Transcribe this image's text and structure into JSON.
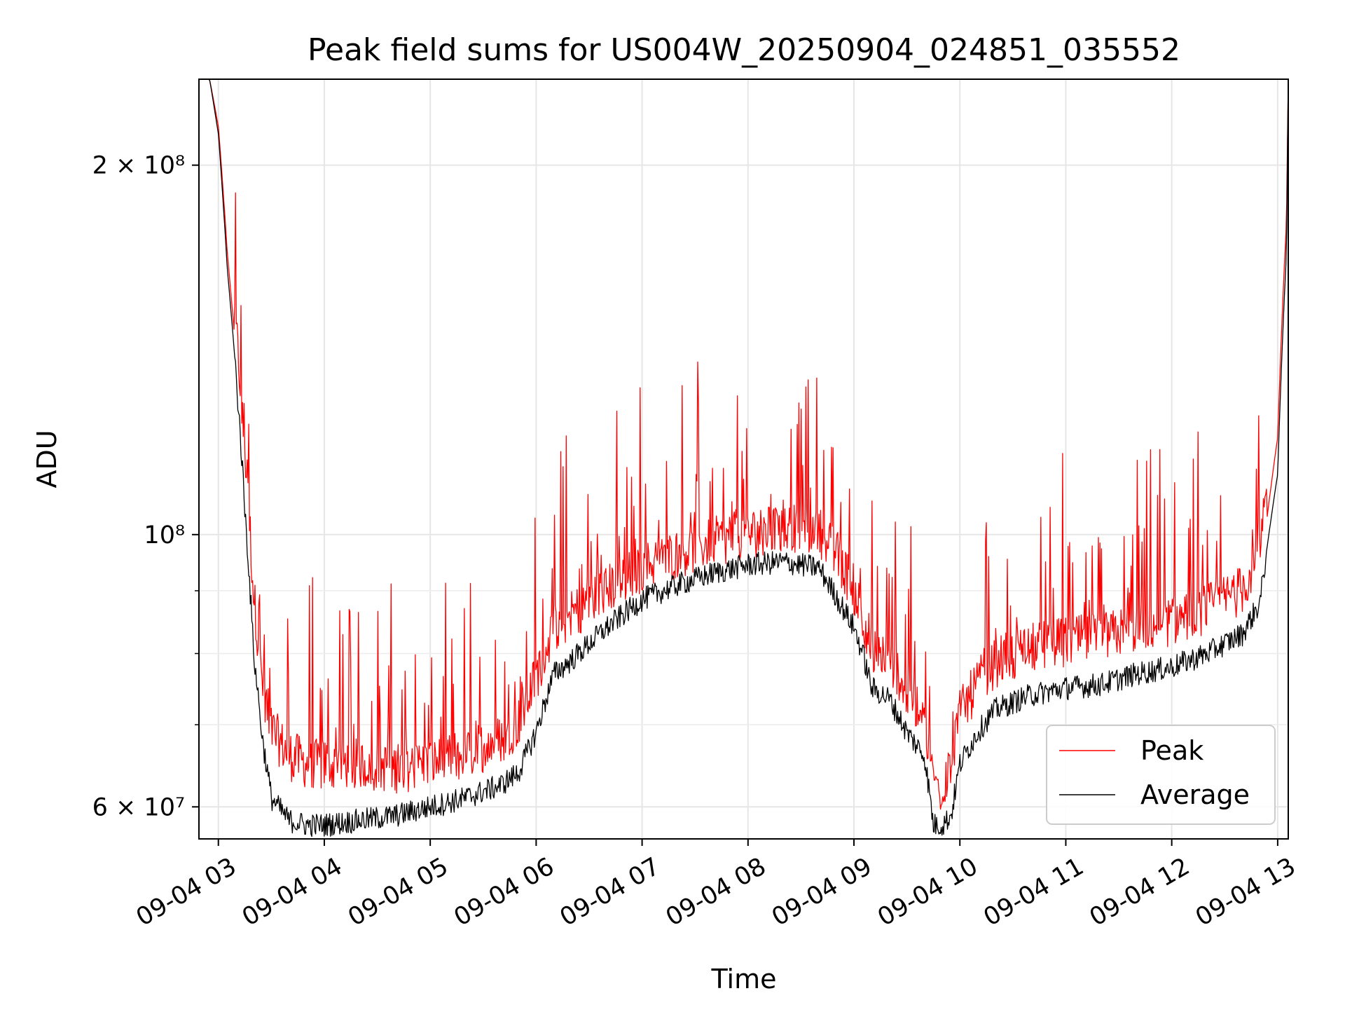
{
  "chart_data": {
    "type": "line",
    "title": "Peak field sums for US004W_20250904_024851_035552",
    "xlabel": "Time",
    "ylabel": "ADU",
    "x_scale": "time",
    "y_scale": "log",
    "xlim": [
      "09-04 02:49",
      "09-04 13:06"
    ],
    "ylim": [
      56500000,
      235000000
    ],
    "x_ticks": [
      "09-04 03",
      "09-04 04",
      "09-04 05",
      "09-04 06",
      "09-04 07",
      "09-04 08",
      "09-04 09",
      "09-04 10",
      "09-04 11",
      "09-04 12",
      "09-04 13"
    ],
    "y_major_ticks": [
      {
        "value": 60000000,
        "label": "6 × 10⁷"
      },
      {
        "value": 100000000,
        "label": "10⁸"
      },
      {
        "value": 200000000,
        "label": "2 × 10⁸"
      }
    ],
    "y_minor_ticks": [
      70000000,
      80000000,
      90000000
    ],
    "grid": true,
    "legend_position": "lower right",
    "series": [
      {
        "name": "Peak",
        "color": "#ff0000",
        "x": [
          "02:49",
          "02:55",
          "03:00",
          "03:05",
          "03:10",
          "03:15",
          "03:20",
          "03:25",
          "03:30",
          "03:40",
          "03:50",
          "04:00",
          "04:20",
          "04:40",
          "05:00",
          "05:20",
          "05:40",
          "05:50",
          "06:00",
          "06:10",
          "06:20",
          "06:40",
          "07:00",
          "07:20",
          "07:40",
          "08:00",
          "08:20",
          "08:40",
          "08:50",
          "09:00",
          "09:05",
          "09:10",
          "09:20",
          "09:30",
          "09:40",
          "09:45",
          "09:50",
          "09:55",
          "10:00",
          "10:10",
          "10:20",
          "10:40",
          "11:00",
          "11:20",
          "11:40",
          "12:00",
          "12:20",
          "12:40",
          "12:50",
          "13:00",
          "13:05",
          "13:06"
        ],
        "y": [
          235000000,
          235000000,
          215000000,
          170000000,
          140000000,
          112000000,
          85000000,
          72000000,
          66000000,
          63000000,
          62000000,
          62000000,
          62000000,
          61500000,
          62000000,
          63000000,
          65000000,
          67000000,
          73000000,
          80000000,
          82000000,
          86000000,
          89500000,
          92000000,
          94000000,
          95500000,
          96500000,
          96000000,
          92000000,
          86000000,
          82000000,
          77000000,
          76000000,
          71000000,
          68000000,
          60000000,
          59000000,
          62000000,
          68000000,
          72000000,
          75000000,
          77000000,
          78000000,
          78500000,
          80000000,
          81000000,
          83000000,
          86000000,
          92000000,
          120000000,
          180000000,
          235000000
        ]
      },
      {
        "name": "Average",
        "color": "#000000",
        "x": [
          "02:49",
          "02:55",
          "03:00",
          "03:05",
          "03:10",
          "03:15",
          "03:20",
          "03:25",
          "03:30",
          "03:40",
          "03:50",
          "04:00",
          "04:20",
          "04:40",
          "05:00",
          "05:20",
          "05:40",
          "05:50",
          "06:00",
          "06:10",
          "06:20",
          "06:40",
          "07:00",
          "07:20",
          "07:40",
          "08:00",
          "08:20",
          "08:40",
          "08:50",
          "09:00",
          "09:05",
          "09:10",
          "09:20",
          "09:30",
          "09:40",
          "09:45",
          "09:50",
          "09:55",
          "10:00",
          "10:10",
          "10:20",
          "10:40",
          "11:00",
          "11:20",
          "11:40",
          "12:00",
          "12:20",
          "12:40",
          "12:50",
          "13:00",
          "13:05",
          "13:06"
        ],
        "y": [
          235000000,
          235000000,
          212000000,
          165000000,
          135000000,
          105000000,
          80000000,
          68000000,
          61000000,
          58500000,
          58000000,
          58000000,
          58500000,
          59000000,
          60000000,
          61000000,
          62500000,
          64000000,
          69000000,
          77000000,
          79000000,
          84000000,
          88500000,
          91000000,
          93000000,
          94500000,
          95000000,
          94000000,
          89000000,
          84000000,
          80000000,
          75000000,
          73500000,
          69000000,
          66000000,
          58000000,
          58000000,
          59000000,
          65000000,
          69000000,
          72000000,
          74000000,
          75000000,
          75500000,
          77000000,
          78000000,
          80000000,
          83000000,
          88000000,
          112000000,
          170000000,
          235000000
        ]
      }
    ],
    "legend": [
      "Peak",
      "Average"
    ]
  }
}
